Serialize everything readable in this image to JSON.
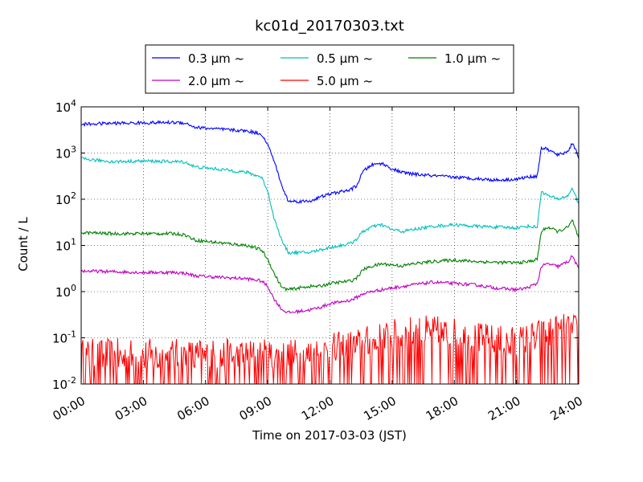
{
  "chart_data": {
    "type": "line",
    "title": "kc01d_20170303.txt",
    "xlabel": "Time on 2017-03-03 (JST)",
    "ylabel": "Count / L",
    "y_scale": "log",
    "ylim": [
      0.01,
      10000
    ],
    "xlim": [
      "00:00",
      "24:00"
    ],
    "x_unit": "hours (JST)",
    "grid": true,
    "grid_style": "dotted",
    "legend_position": "top-center",
    "x_ticks": [
      "00:00",
      "03:00",
      "06:00",
      "09:00",
      "12:00",
      "15:00",
      "18:00",
      "21:00",
      "24:00"
    ],
    "y_ticks": [
      {
        "base": "10",
        "exp": "-2"
      },
      {
        "base": "10",
        "exp": "-1"
      },
      {
        "base": "10",
        "exp": "0"
      },
      {
        "base": "10",
        "exp": "1"
      },
      {
        "base": "10",
        "exp": "2"
      },
      {
        "base": "10",
        "exp": "3"
      },
      {
        "base": "10",
        "exp": "4"
      }
    ],
    "series": [
      {
        "name": "0.3 μm ~",
        "color": "#0000ff",
        "points": [
          [
            0,
            4200
          ],
          [
            1.5,
            4400
          ],
          [
            3,
            4500
          ],
          [
            4.5,
            4600
          ],
          [
            5,
            4500
          ],
          [
            5.5,
            3600
          ],
          [
            7,
            3200
          ],
          [
            8,
            3000
          ],
          [
            8.7,
            2600
          ],
          [
            9,
            1500
          ],
          [
            9.3,
            700
          ],
          [
            9.7,
            180
          ],
          [
            10,
            90
          ],
          [
            11,
            90
          ],
          [
            11.5,
            110
          ],
          [
            12,
            130
          ],
          [
            13,
            160
          ],
          [
            13.3,
            200
          ],
          [
            13.6,
            400
          ],
          [
            14,
            550
          ],
          [
            14.5,
            600
          ],
          [
            15,
            450
          ],
          [
            15.5,
            380
          ],
          [
            16,
            350
          ],
          [
            17,
            320
          ],
          [
            18,
            300
          ],
          [
            19,
            280
          ],
          [
            20,
            260
          ],
          [
            21,
            270
          ],
          [
            21.5,
            300
          ],
          [
            22,
            320
          ],
          [
            22.2,
            1300
          ],
          [
            22.5,
            1200
          ],
          [
            23,
            900
          ],
          [
            23.5,
            1100
          ],
          [
            23.7,
            1700
          ],
          [
            24,
            800
          ]
        ]
      },
      {
        "name": "0.5 μm ~",
        "color": "#00bfbf",
        "points": [
          [
            0,
            750
          ],
          [
            1.5,
            650
          ],
          [
            3,
            670
          ],
          [
            4.5,
            650
          ],
          [
            5,
            640
          ],
          [
            5.5,
            500
          ],
          [
            7,
            430
          ],
          [
            8,
            380
          ],
          [
            8.7,
            300
          ],
          [
            9,
            150
          ],
          [
            9.3,
            40
          ],
          [
            9.7,
            12
          ],
          [
            10,
            7
          ],
          [
            11,
            7
          ],
          [
            11.5,
            8
          ],
          [
            12,
            9
          ],
          [
            13,
            11
          ],
          [
            13.3,
            14
          ],
          [
            13.6,
            20
          ],
          [
            14,
            25
          ],
          [
            14.5,
            28
          ],
          [
            15,
            22
          ],
          [
            15.5,
            20
          ],
          [
            16,
            22
          ],
          [
            17,
            26
          ],
          [
            18,
            28
          ],
          [
            19,
            26
          ],
          [
            20,
            25
          ],
          [
            21,
            24
          ],
          [
            21.5,
            26
          ],
          [
            22,
            25
          ],
          [
            22.2,
            150
          ],
          [
            22.5,
            120
          ],
          [
            23,
            100
          ],
          [
            23.5,
            120
          ],
          [
            23.7,
            180
          ],
          [
            24,
            75
          ]
        ]
      },
      {
        "name": "1.0 μm ~",
        "color": "#008000",
        "points": [
          [
            0,
            19
          ],
          [
            1.5,
            18
          ],
          [
            3,
            18
          ],
          [
            4.5,
            18
          ],
          [
            5,
            17
          ],
          [
            5.5,
            13
          ],
          [
            7,
            11
          ],
          [
            8,
            10
          ],
          [
            8.7,
            8
          ],
          [
            9,
            5
          ],
          [
            9.3,
            2.5
          ],
          [
            9.7,
            1.2
          ],
          [
            10,
            1.1
          ],
          [
            11,
            1.3
          ],
          [
            11.5,
            1.3
          ],
          [
            12,
            1.5
          ],
          [
            13,
            1.7
          ],
          [
            13.3,
            2
          ],
          [
            13.6,
            3
          ],
          [
            14,
            3.5
          ],
          [
            14.5,
            4
          ],
          [
            15,
            3.8
          ],
          [
            15.5,
            3.6
          ],
          [
            16,
            4
          ],
          [
            17,
            4.5
          ],
          [
            18,
            4.8
          ],
          [
            19,
            4.5
          ],
          [
            20,
            4.3
          ],
          [
            21,
            4.2
          ],
          [
            21.5,
            4.4
          ],
          [
            22,
            5
          ],
          [
            22.2,
            20
          ],
          [
            22.5,
            25
          ],
          [
            23,
            20
          ],
          [
            23.5,
            25
          ],
          [
            23.7,
            35
          ],
          [
            24,
            14
          ]
        ]
      },
      {
        "name": "2.0 μm ~",
        "color": "#bf00bf",
        "points": [
          [
            0,
            2.8
          ],
          [
            1.5,
            2.7
          ],
          [
            3,
            2.6
          ],
          [
            4.5,
            2.6
          ],
          [
            5,
            2.5
          ],
          [
            5.5,
            2.2
          ],
          [
            7,
            2.0
          ],
          [
            8,
            1.9
          ],
          [
            8.7,
            1.7
          ],
          [
            9,
            1.3
          ],
          [
            9.3,
            0.7
          ],
          [
            9.7,
            0.4
          ],
          [
            10,
            0.35
          ],
          [
            11,
            0.4
          ],
          [
            11.5,
            0.45
          ],
          [
            12,
            0.55
          ],
          [
            13,
            0.65
          ],
          [
            13.3,
            0.75
          ],
          [
            13.6,
            0.9
          ],
          [
            14,
            1.0
          ],
          [
            14.5,
            1.1
          ],
          [
            15,
            1.2
          ],
          [
            15.5,
            1.3
          ],
          [
            16,
            1.4
          ],
          [
            17,
            1.6
          ],
          [
            18,
            1.5
          ],
          [
            19,
            1.4
          ],
          [
            20,
            1.2
          ],
          [
            21,
            1.1
          ],
          [
            21.5,
            1.2
          ],
          [
            22,
            1.5
          ],
          [
            22.2,
            3.5
          ],
          [
            22.5,
            4
          ],
          [
            23,
            3.5
          ],
          [
            23.5,
            4.5
          ],
          [
            23.7,
            6
          ],
          [
            24,
            3
          ]
        ]
      },
      {
        "name": "5.0 μm ~",
        "color": "#ff0000",
        "noisy": true,
        "points": [
          [
            0,
            0.035
          ],
          [
            3,
            0.035
          ],
          [
            6,
            0.035
          ],
          [
            9,
            0.035
          ],
          [
            10.5,
            0.035
          ],
          [
            12,
            0.045
          ],
          [
            13,
            0.055
          ],
          [
            14,
            0.07
          ],
          [
            15,
            0.09
          ],
          [
            16,
            0.11
          ],
          [
            17,
            0.11
          ],
          [
            18,
            0.1
          ],
          [
            19,
            0.08
          ],
          [
            20,
            0.07
          ],
          [
            21,
            0.065
          ],
          [
            22,
            0.09
          ],
          [
            23,
            0.12
          ],
          [
            24,
            0.12
          ]
        ]
      }
    ]
  }
}
